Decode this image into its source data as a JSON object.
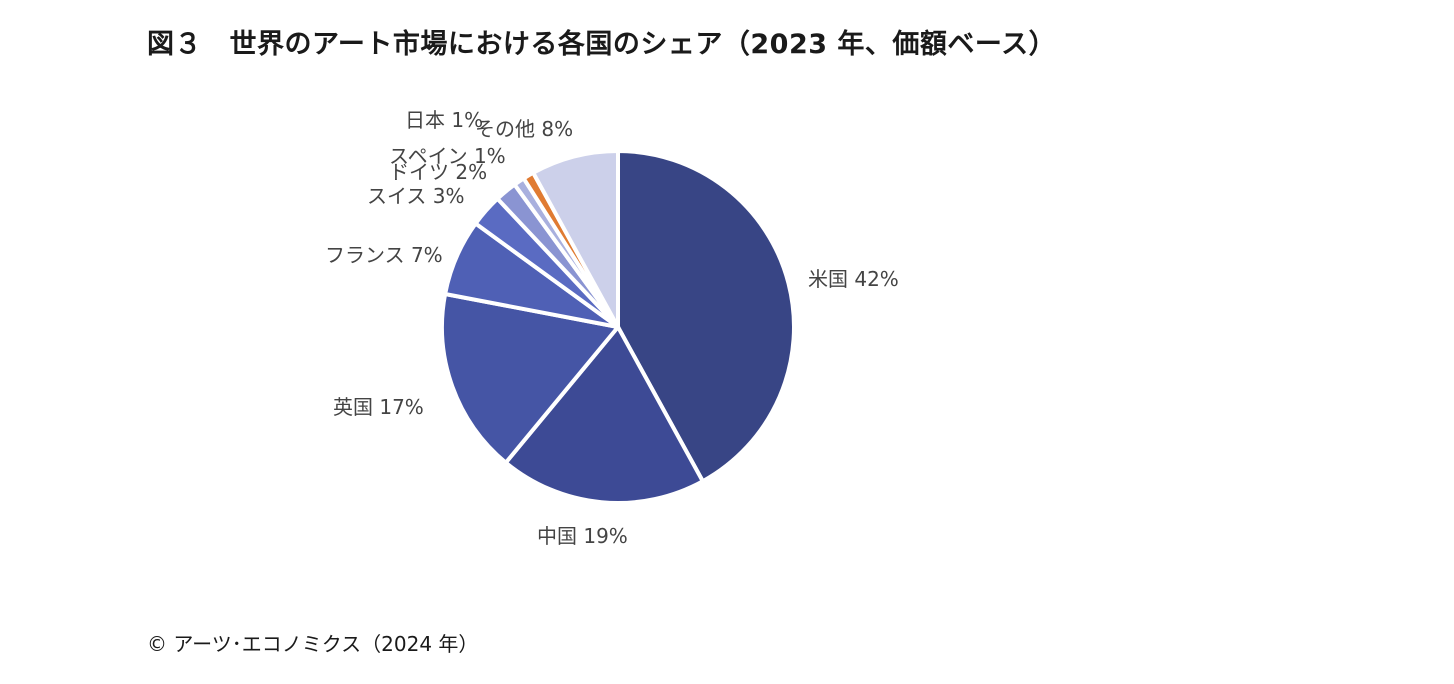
{
  "page": {
    "title": "図３　世界のアート市場における各国のシェア（2023 年、価額ベース）",
    "footer": "© アーツ･エコノミクス（2024 年）"
  },
  "chart_data": {
    "type": "pie",
    "title": "図３　世界のアート市場における各国のシェア（2023 年、価額ベース）",
    "slices": [
      {
        "name": "米国",
        "value": 42,
        "label": "米国 42%",
        "color": "#384585"
      },
      {
        "name": "中国",
        "value": 19,
        "label": "中国 19%",
        "color": "#3d4a95"
      },
      {
        "name": "英国",
        "value": 17,
        "label": "英国 17%",
        "color": "#4555a5"
      },
      {
        "name": "フランス",
        "value": 7,
        "label": "フランス 7%",
        "color": "#4f60b5"
      },
      {
        "name": "スイス",
        "value": 3,
        "label": "スイス 3%",
        "color": "#5a6bc2"
      },
      {
        "name": "ドイツ",
        "value": 2,
        "label": "ドイツ 2%",
        "color": "#8a94d2"
      },
      {
        "name": "スペイン",
        "value": 1,
        "label": "スペイン 1%",
        "color": "#a9b0de"
      },
      {
        "name": "日本",
        "value": 1,
        "label": "日本 1%",
        "color": "#e07b32"
      },
      {
        "name": "その他",
        "value": 8,
        "label": "その他 8%",
        "color": "#ccd0ea"
      }
    ],
    "start_angle": "12 o'clock",
    "direction": "clockwise"
  }
}
